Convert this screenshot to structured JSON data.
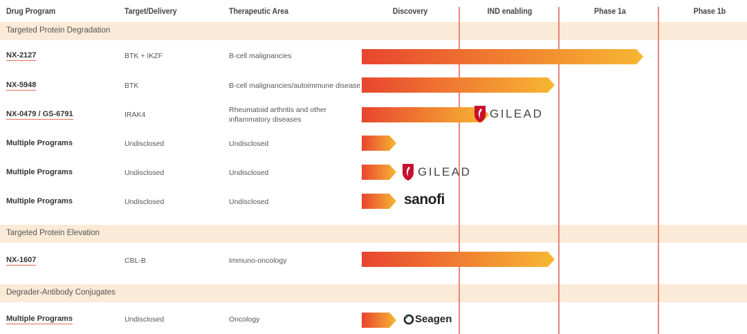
{
  "columns": {
    "drug_program": "Drug Program",
    "target_delivery": "Target/Delivery",
    "therapeutic_area": "Therapeutic Area",
    "discovery": "Discovery",
    "ind_enabling": "IND enabling",
    "phase1a": "Phase 1a",
    "phase1b": "Phase 1b"
  },
  "sections": {
    "degradation": "Targeted Protein Degradation",
    "elevation": "Targeted Protein Elevation",
    "conjugates": "Degrader-Antibody Conjugates"
  },
  "rows": [
    {
      "program": "NX-2127",
      "target": "BTK + IKZF",
      "area": "B-cell malignancies",
      "area2": "",
      "partner": ""
    },
    {
      "program": "NX-5948",
      "target": "BTK",
      "area": "B-cell malignancies/autoimmune disease",
      "area2": "",
      "partner": ""
    },
    {
      "program": "NX-0479 / GS-6791",
      "target": "IRAK4",
      "area": "Rheumatoid arthritis and other",
      "area2": "inflammatory diseases",
      "partner": "GILEAD"
    },
    {
      "program": "Multiple Programs",
      "target": "Undisclosed",
      "area": "Undisclosed",
      "area2": "",
      "partner": ""
    },
    {
      "program": "Multiple Programs",
      "target": "Undisclosed",
      "area": "Undisclosed",
      "area2": "",
      "partner": "GILEAD"
    },
    {
      "program": "Multiple Programs",
      "target": "Undisclosed",
      "area": "Undisclosed",
      "area2": "",
      "partner": "sanofi"
    },
    {
      "program": "NX-1607",
      "target": "CBL-B",
      "area": "Immuno-oncology",
      "area2": "",
      "partner": ""
    },
    {
      "program": "Multiple Programs",
      "target": "Undisclosed",
      "area": "Oncology",
      "area2": "",
      "partner": "Seagen"
    }
  ],
  "progress_fraction": [
    0.73,
    0.5,
    0.33,
    0.09,
    0.09,
    0.09,
    0.5,
    0.09
  ],
  "colors": {
    "bar_start": "#e8452f",
    "bar_end": "#f7b733",
    "section_bg": "#fbead7",
    "divider": "#e8857a",
    "gilead_red": "#c8102e"
  }
}
